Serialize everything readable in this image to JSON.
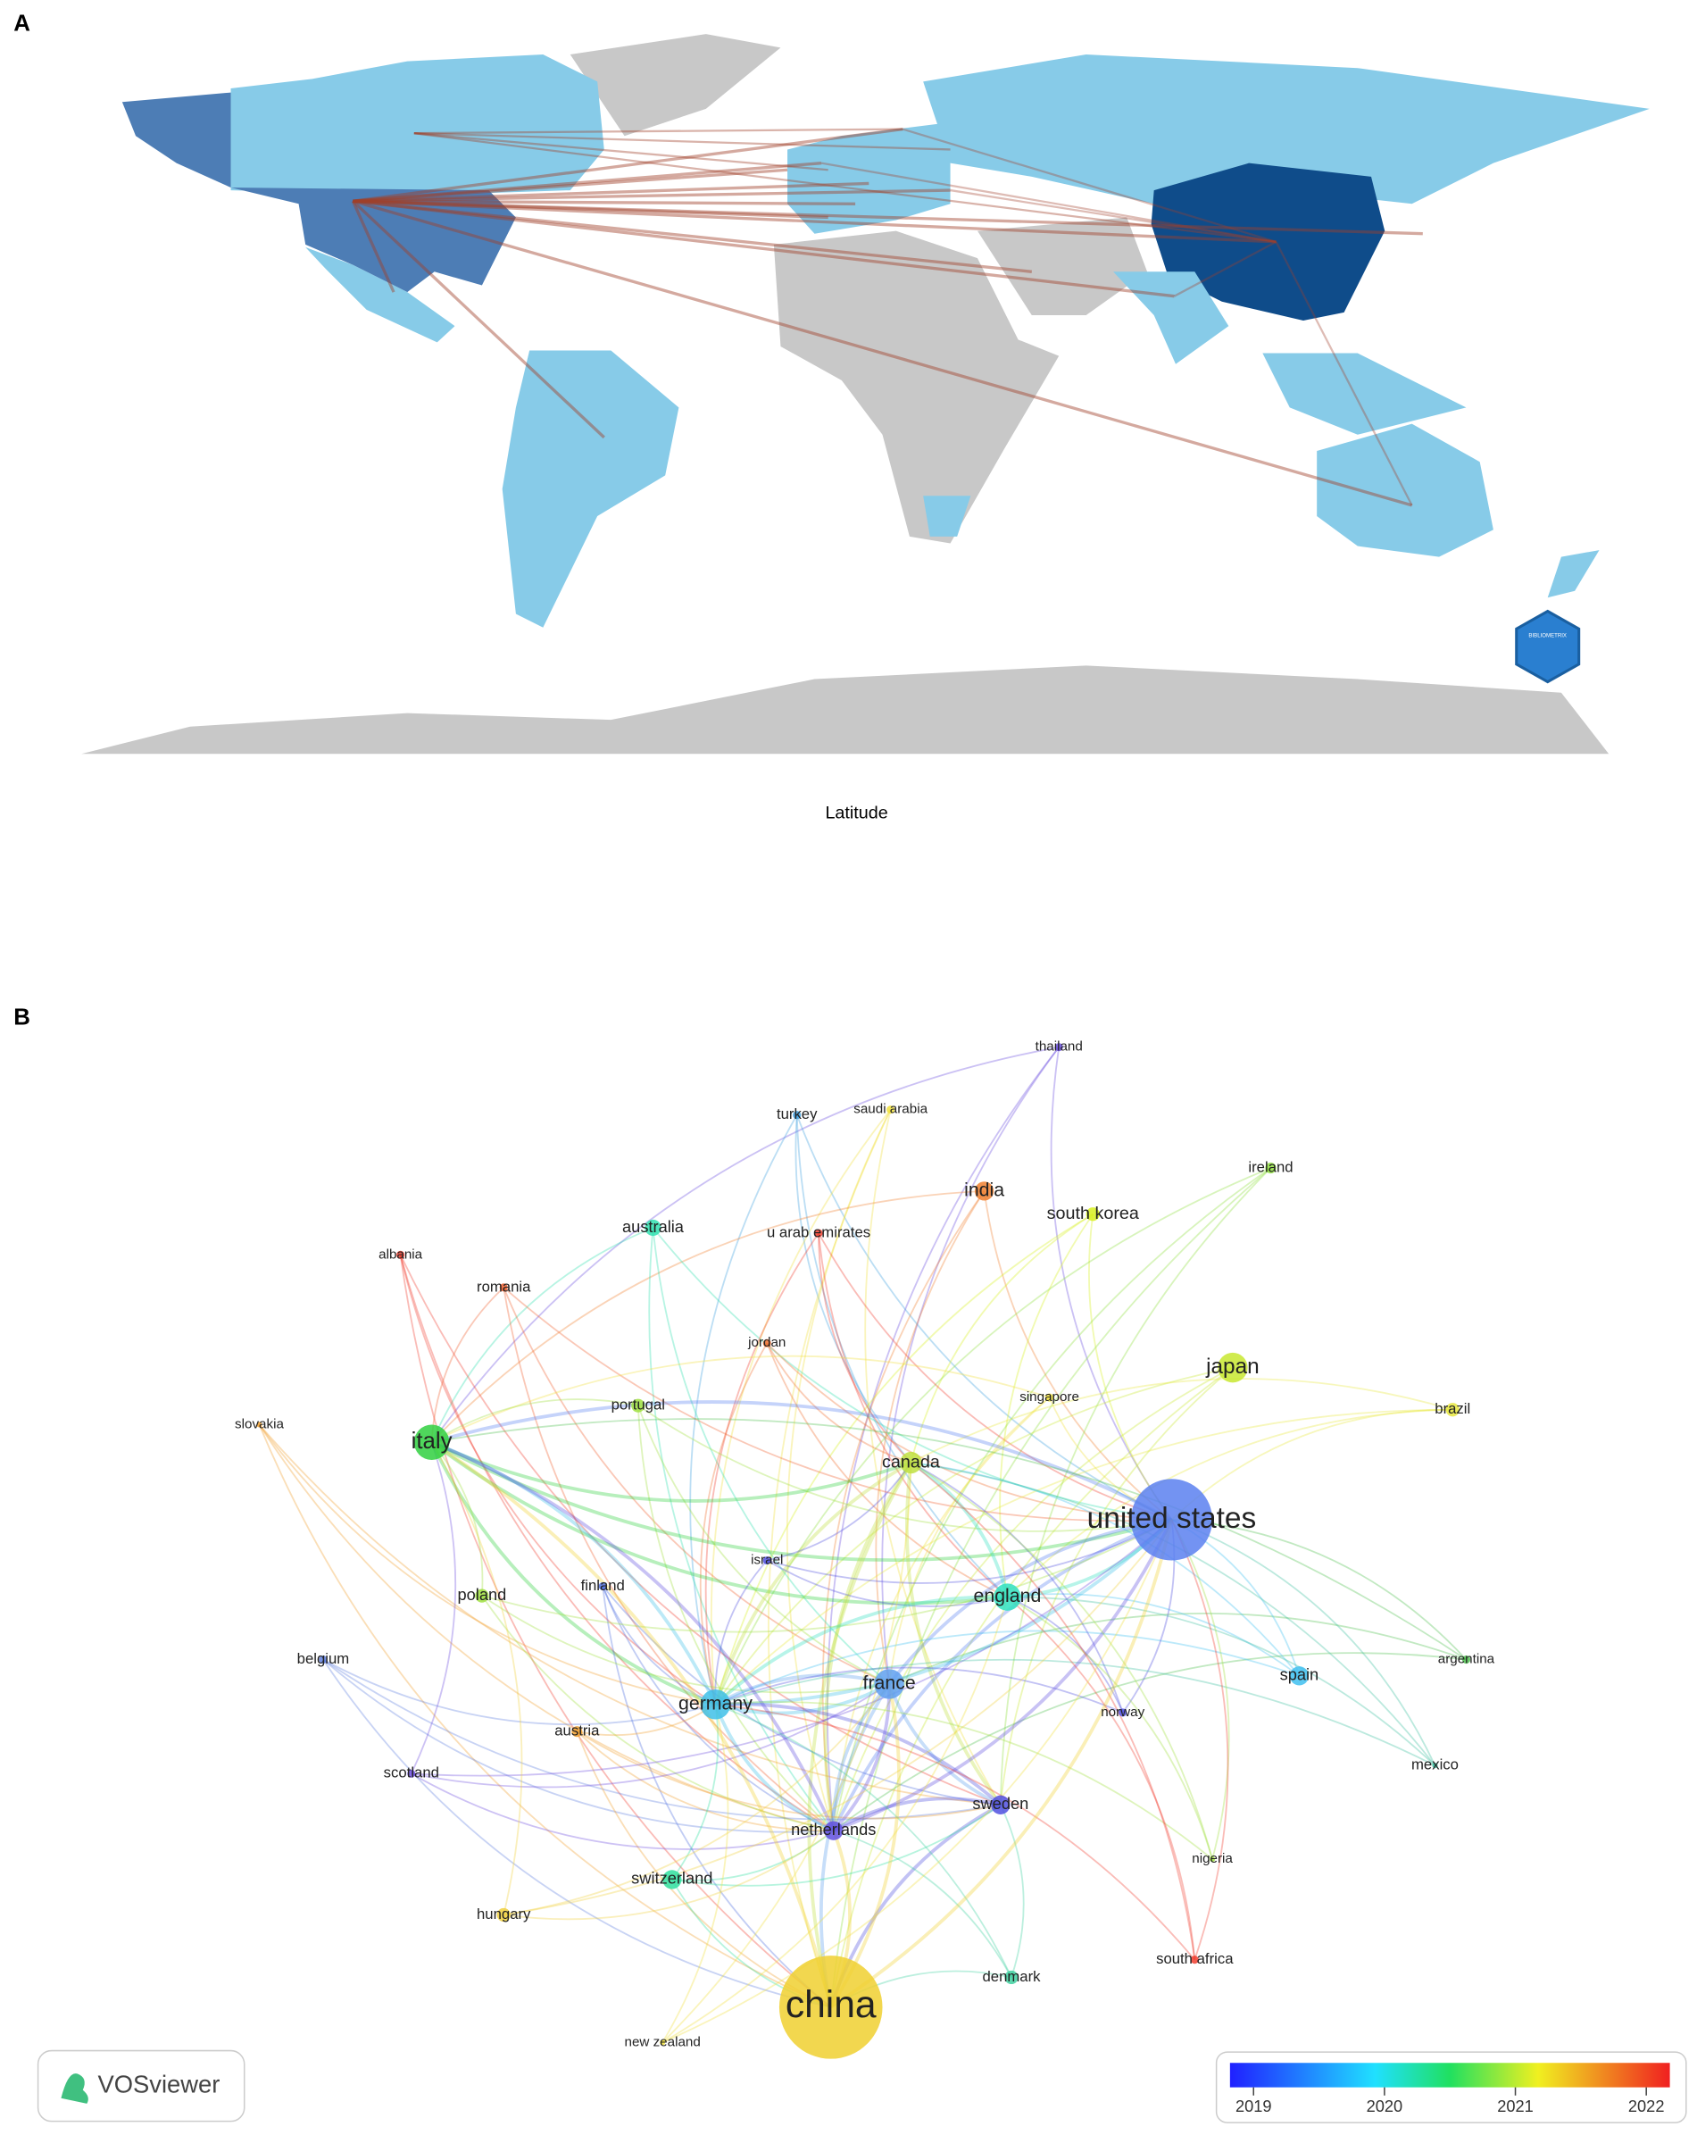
{
  "panel_a": {
    "label": "A",
    "x_axis_label": "Latitude",
    "logo_text": "BIBLIOMETRIX"
  },
  "panel_b": {
    "label": "B",
    "nodes": [
      {
        "label": "thailand",
        "color": "#6a4ee0"
      },
      {
        "label": "turkey",
        "color": "#40a0e0"
      },
      {
        "label": "saudi arabia",
        "color": "#f0e040"
      },
      {
        "label": "india",
        "color": "#f08030"
      },
      {
        "label": "south korea",
        "color": "#d8f020"
      },
      {
        "label": "ireland",
        "color": "#90e040"
      },
      {
        "label": "australia",
        "color": "#30e0b0"
      },
      {
        "label": "u arab emirates",
        "color": "#f04030"
      },
      {
        "label": "albania",
        "color": "#f04030"
      },
      {
        "label": "romania",
        "color": "#f06030"
      },
      {
        "label": "jordan",
        "color": "#f07030"
      },
      {
        "label": "japan",
        "color": "#c8e830"
      },
      {
        "label": "singapore",
        "color": "#f0e040"
      },
      {
        "label": "brazil",
        "color": "#e8e840"
      },
      {
        "label": "slovakia",
        "color": "#f0a030"
      },
      {
        "label": "portugal",
        "color": "#a0e040"
      },
      {
        "label": "italy",
        "color": "#30d040"
      },
      {
        "label": "canada",
        "color": "#c0e040"
      },
      {
        "label": "united states",
        "color": "#5a80f0"
      },
      {
        "label": "israel",
        "color": "#5050e0"
      },
      {
        "label": "finland",
        "color": "#5070e0"
      },
      {
        "label": "poland",
        "color": "#a0e040"
      },
      {
        "label": "england",
        "color": "#30e0c0"
      },
      {
        "label": "belgium",
        "color": "#6080e0"
      },
      {
        "label": "argentina",
        "color": "#50c050"
      },
      {
        "label": "spain",
        "color": "#40c0f0"
      },
      {
        "label": "france",
        "color": "#5fa0ef"
      },
      {
        "label": "germany",
        "color": "#40c0e8"
      },
      {
        "label": "norway",
        "color": "#5050e0"
      },
      {
        "label": "austria",
        "color": "#f0a030"
      },
      {
        "label": "scotland",
        "color": "#7050e0"
      },
      {
        "label": "mexico",
        "color": "#40c0a0"
      },
      {
        "label": "sweden",
        "color": "#5050e0"
      },
      {
        "label": "netherlands",
        "color": "#6050e0"
      },
      {
        "label": "nigeria",
        "color": "#a0e040"
      },
      {
        "label": "switzerland",
        "color": "#30e0a0"
      },
      {
        "label": "hungary",
        "color": "#f0d040"
      },
      {
        "label": "south africa",
        "color": "#f04030"
      },
      {
        "label": "denmark",
        "color": "#40d0a0"
      },
      {
        "label": "china",
        "color": "#f0d030"
      },
      {
        "label": "new zealand",
        "color": "#f0e040"
      }
    ],
    "legend": "VOSviewer",
    "colorbar": {
      "lim": [
        2018.82,
        2022.18
      ],
      "ticks": [
        2019,
        2020,
        2021,
        2022
      ]
    }
  }
}
